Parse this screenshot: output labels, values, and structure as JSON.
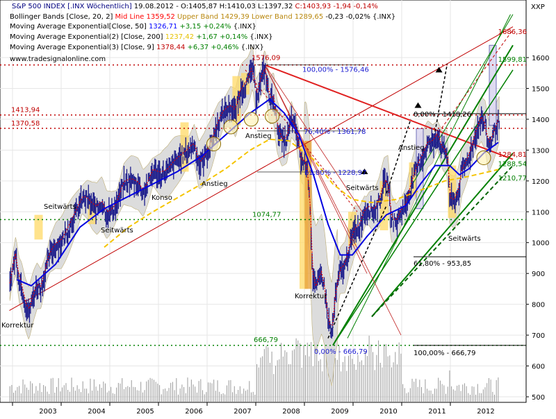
{
  "chart_data": {
    "type": "candlestick",
    "symbol": "XXP",
    "header_items": [
      {
        "text": "S&P 500 INDEX [.INX  Wöchentlich]",
        "color": "#000080"
      },
      {
        "text": " 19.08.2012 - O:1405,87 H:1410,03 L:1397,32 ",
        "color": "#000000"
      },
      {
        "text": "C:1403,93",
        "color": "#c00000"
      },
      {
        "text": " -1,94 -0,14%",
        "color": "#c00000"
      }
    ],
    "legend": [
      {
        "name": "Bollinger Bands [Close, 20, 2]",
        "items": [
          {
            "text": "Mid Line 1359,52",
            "color": "#ff0000"
          },
          {
            "text": " Upper Band 1429,39",
            "color": "#b8860b"
          },
          {
            "text": " Lower Band 1289,65",
            "color": "#b8860b"
          },
          {
            "text": " -0,23 -0,02% {.INX}",
            "color": "#000000"
          }
        ]
      },
      {
        "name": "Moving Average Exponential[Close, 50]",
        "items": [
          {
            "text": "1326,71",
            "color": "#0000ff"
          },
          {
            "text": " +3,15 +0,24%",
            "color": "#008000"
          },
          {
            "text": " {.INX}",
            "color": "#000000"
          }
        ]
      },
      {
        "name": "Moving Average Exponential(2) [Close, 200]",
        "items": [
          {
            "text": "1237,42",
            "color": "#e6c200"
          },
          {
            "text": " +1,67 +0,14%",
            "color": "#008000"
          },
          {
            "text": " {.INX}",
            "color": "#000000"
          }
        ]
      },
      {
        "name": "Moving Average Exponential(3) [Close, 9]",
        "items": [
          {
            "text": "1378,44",
            "color": "#c00000"
          },
          {
            "text": " +6,37 +0,46%",
            "color": "#008000"
          },
          {
            "text": " {.INX}",
            "color": "#000000"
          }
        ]
      }
    ],
    "source": "www.tradesignalonline.com",
    "y_ticks": [
      500,
      600,
      700,
      800,
      900,
      1000,
      1100,
      1200,
      1300,
      1400,
      1500,
      1600
    ],
    "x_labels": [
      "2003",
      "2004",
      "2005",
      "2006",
      "2007",
      "2008",
      "2009",
      "2010",
      "2011",
      "2012"
    ],
    "y_range": [
      480,
      1740
    ],
    "price_path": [
      [
        2002.55,
        850
      ],
      [
        2002.6,
        900
      ],
      [
        2002.68,
        960
      ],
      [
        2002.75,
        880
      ],
      [
        2002.8,
        860
      ],
      [
        2002.88,
        800
      ],
      [
        2002.95,
        770
      ],
      [
        2003.05,
        830
      ],
      [
        2003.12,
        860
      ],
      [
        2003.2,
        850
      ],
      [
        2003.28,
        900
      ],
      [
        2003.38,
        960
      ],
      [
        2003.5,
        990
      ],
      [
        2003.62,
        1000
      ],
      [
        2003.75,
        1040
      ],
      [
        2003.9,
        1090
      ],
      [
        2004.05,
        1140
      ],
      [
        2004.15,
        1140
      ],
      [
        2004.25,
        1120
      ],
      [
        2004.35,
        1110
      ],
      [
        2004.45,
        1130
      ],
      [
        2004.55,
        1090
      ],
      [
        2004.65,
        1100
      ],
      [
        2004.75,
        1120
      ],
      [
        2004.9,
        1190
      ],
      [
        2005.05,
        1200
      ],
      [
        2005.2,
        1190
      ],
      [
        2005.3,
        1160
      ],
      [
        2005.4,
        1190
      ],
      [
        2005.5,
        1230
      ],
      [
        2005.65,
        1220
      ],
      [
        2005.8,
        1230
      ],
      [
        2005.95,
        1260
      ],
      [
        2006.1,
        1280
      ],
      [
        2006.25,
        1300
      ],
      [
        2006.35,
        1320
      ],
      [
        2006.45,
        1250
      ],
      [
        2006.55,
        1270
      ],
      [
        2006.7,
        1320
      ],
      [
        2006.85,
        1390
      ],
      [
        2006.95,
        1420
      ],
      [
        2007.1,
        1440
      ],
      [
        2007.2,
        1420
      ],
      [
        2007.3,
        1490
      ],
      [
        2007.45,
        1520
      ],
      [
        2007.55,
        1570
      ],
      [
        2007.62,
        1470
      ],
      [
        2007.75,
        1540
      ],
      [
        2007.8,
        1565
      ],
      [
        2007.9,
        1460
      ],
      [
        2007.98,
        1470
      ],
      [
        2008.05,
        1380
      ],
      [
        2008.15,
        1330
      ],
      [
        2008.25,
        1330
      ],
      [
        2008.35,
        1400
      ],
      [
        2008.45,
        1360
      ],
      [
        2008.55,
        1260
      ],
      [
        2008.65,
        1260
      ],
      [
        2008.72,
        1170
      ],
      [
        2008.78,
        900
      ],
      [
        2008.85,
        850
      ],
      [
        2008.92,
        880
      ],
      [
        2008.97,
        900
      ],
      [
        2009.03,
        850
      ],
      [
        2009.1,
        750
      ],
      [
        2009.18,
        700
      ],
      [
        2009.25,
        820
      ],
      [
        2009.35,
        910
      ],
      [
        2009.45,
        920
      ],
      [
        2009.55,
        990
      ],
      [
        2009.65,
        1040
      ],
      [
        2009.75,
        1050
      ],
      [
        2009.85,
        1100
      ],
      [
        2009.95,
        1110
      ],
      [
        2010.05,
        1100
      ],
      [
        2010.15,
        1130
      ],
      [
        2010.25,
        1190
      ],
      [
        2010.33,
        1200
      ],
      [
        2010.4,
        1080
      ],
      [
        2010.5,
        1060
      ],
      [
        2010.6,
        1100
      ],
      [
        2010.7,
        1120
      ],
      [
        2010.8,
        1180
      ],
      [
        2010.9,
        1230
      ],
      [
        2010.98,
        1260
      ],
      [
        2011.05,
        1280
      ],
      [
        2011.15,
        1320
      ],
      [
        2011.25,
        1320
      ],
      [
        2011.35,
        1350
      ],
      [
        2011.45,
        1300
      ],
      [
        2011.55,
        1290
      ],
      [
        2011.6,
        1140
      ],
      [
        2011.7,
        1130
      ],
      [
        2011.78,
        1160
      ],
      [
        2011.85,
        1230
      ],
      [
        2011.95,
        1260
      ],
      [
        2012.05,
        1300
      ],
      [
        2012.15,
        1360
      ],
      [
        2012.25,
        1400
      ],
      [
        2012.33,
        1380
      ],
      [
        2012.4,
        1310
      ],
      [
        2012.48,
        1340
      ],
      [
        2012.55,
        1370
      ],
      [
        2012.63,
        1405
      ]
    ],
    "ema50": [
      [
        2002.7,
        880
      ],
      [
        2003.0,
        860
      ],
      [
        2003.5,
        930
      ],
      [
        2004.0,
        1050
      ],
      [
        2004.5,
        1110
      ],
      [
        2005.0,
        1150
      ],
      [
        2005.5,
        1190
      ],
      [
        2006.0,
        1230
      ],
      [
        2006.5,
        1280
      ],
      [
        2007.0,
        1350
      ],
      [
        2007.5,
        1420
      ],
      [
        2007.9,
        1465
      ],
      [
        2008.2,
        1420
      ],
      [
        2008.5,
        1350
      ],
      [
        2008.8,
        1220
      ],
      [
        2009.1,
        1060
      ],
      [
        2009.35,
        960
      ],
      [
        2009.6,
        960
      ],
      [
        2009.9,
        1020
      ],
      [
        2010.3,
        1090
      ],
      [
        2010.7,
        1120
      ],
      [
        2011.0,
        1190
      ],
      [
        2011.3,
        1250
      ],
      [
        2011.6,
        1250
      ],
      [
        2011.8,
        1220
      ],
      [
        2012.0,
        1240
      ],
      [
        2012.3,
        1290
      ],
      [
        2012.6,
        1325
      ]
    ],
    "ema200": [
      [
        2004.5,
        985
      ],
      [
        2005.0,
        1050
      ],
      [
        2005.5,
        1100
      ],
      [
        2006.0,
        1145
      ],
      [
        2006.5,
        1190
      ],
      [
        2007.0,
        1240
      ],
      [
        2007.5,
        1300
      ],
      [
        2007.9,
        1335
      ],
      [
        2008.3,
        1330
      ],
      [
        2008.8,
        1270
      ],
      [
        2009.2,
        1190
      ],
      [
        2009.6,
        1140
      ],
      [
        2010.0,
        1130
      ],
      [
        2010.5,
        1140
      ],
      [
        2011.0,
        1170
      ],
      [
        2011.5,
        1200
      ],
      [
        2012.0,
        1215
      ],
      [
        2012.6,
        1237
      ]
    ],
    "vertical_bars": [
      [
        2003.15,
        1090,
        1010
      ],
      [
        2004.25,
        1140,
        1060
      ],
      [
        2006.15,
        1390,
        1230
      ],
      [
        2007.22,
        1540,
        1380
      ],
      [
        2007.4,
        1550,
        1480
      ],
      [
        2008.6,
        1330,
        850
      ],
      [
        2009.6,
        1100,
        990
      ],
      [
        2010.25,
        1200,
        1040
      ],
      [
        2010.85,
        1260,
        1150
      ],
      [
        2011.65,
        1250,
        1080
      ],
      [
        2011.0,
        1370,
        1110
      ],
      [
        2012.5,
        1640,
        1380
      ]
    ],
    "horizontal_lines": [
      {
        "value": 1576.09,
        "color": "#c00000",
        "style": "dotted"
      },
      {
        "value": 1413.94,
        "color": "#c00000",
        "style": "dotted"
      },
      {
        "value": 1370.58,
        "color": "#c00000",
        "style": "dotted"
      },
      {
        "value": 1074.77,
        "color": "#008000",
        "style": "dotted"
      },
      {
        "value": 666.79,
        "color": "#008000",
        "style": "dotted"
      }
    ],
    "labels_left": [
      "1413,94",
      "1370,58"
    ],
    "annotations_red": [
      "1576,09",
      "1686,36"
    ],
    "annotations_green": [
      "1074,77",
      "666,79",
      "1599,81",
      "1210,77"
    ],
    "annotations_blue": [
      "100,00% - 1576,46",
      "76,40% - 1361,78",
      "61,80% - 1228,97",
      "0,00% - 666,79"
    ],
    "annotations_black": [
      "0,00% - 1418,26",
      "61,80% - 953,85",
      "100,00% - 666,79"
    ],
    "annotations_darkred": [
      "1284,81",
      "1288,54"
    ],
    "text_labels": [
      "Korrektur",
      "Seitwärts",
      "Seitwärts",
      "Konso",
      "Anstieg",
      "Anstieg",
      "Korrektur",
      "Seitwärts",
      "Anstieg",
      "Seitwärts"
    ],
    "volume_peaks": [
      [
        2008.85,
        0.95
      ],
      [
        2009.05,
        0.8
      ],
      [
        2008.3,
        0.6
      ],
      [
        2010.4,
        0.55
      ],
      [
        2011.6,
        0.5
      ]
    ]
  }
}
